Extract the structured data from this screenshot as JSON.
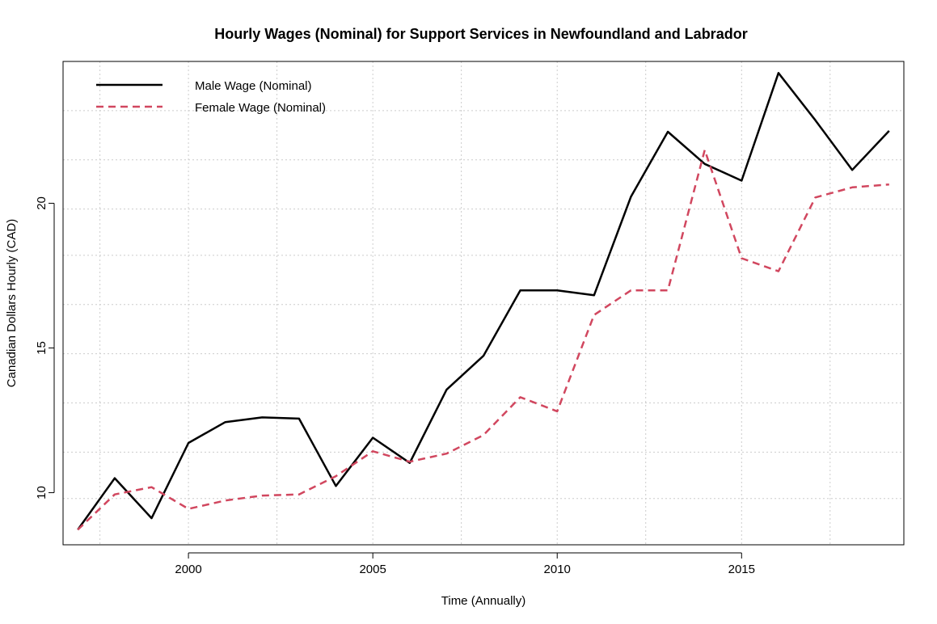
{
  "chart_data": {
    "type": "line",
    "title": "Hourly Wages (Nominal) for Support Services in Newfoundland and Labrador",
    "xlabel": "Time (Annually)",
    "ylabel": "Canadian Dollars Hourly (CAD)",
    "xlim": [
      1996.6,
      2019.4
    ],
    "ylim": [
      8.2,
      24.9
    ],
    "x_ticks": [
      2000,
      2005,
      2010,
      2015
    ],
    "y_ticks": [
      10,
      15,
      20
    ],
    "x_grid": [
      1997.6,
      2000,
      2002.4,
      2005,
      2007.4,
      2010,
      2012.4,
      2015,
      2017.4
    ],
    "y_grid": [
      9.8,
      11.4,
      13.1,
      14.8,
      16.5,
      18.2,
      19.8,
      21.5,
      23.2
    ],
    "grid": true,
    "legend_position": "top-left",
    "x": [
      1997,
      1998,
      1999,
      2000,
      2001,
      2002,
      2003,
      2004,
      2005,
      2006,
      2007,
      2008,
      2009,
      2010,
      2011,
      2012,
      2013,
      2014,
      2015,
      2016,
      2017,
      2018,
      2019
    ],
    "series": [
      {
        "name": "Male Wage (Nominal)",
        "color": "#000000",
        "style": "solid",
        "values": [
          8.72,
          10.5,
          9.12,
          11.72,
          12.44,
          12.6,
          12.56,
          10.23,
          11.9,
          11.03,
          13.56,
          14.73,
          16.99,
          16.99,
          16.82,
          20.23,
          22.47,
          21.36,
          20.78,
          24.5,
          22.87,
          21.15,
          22.5
        ]
      },
      {
        "name": "Female Wage (Nominal)",
        "color": "#d1475f",
        "style": "dashed",
        "values": [
          8.72,
          9.94,
          10.19,
          9.44,
          9.73,
          9.9,
          9.94,
          10.57,
          11.43,
          11.07,
          11.35,
          11.99,
          13.3,
          12.81,
          16.14,
          16.99,
          16.99,
          21.84,
          18.1,
          17.65,
          20.2,
          20.55,
          20.65
        ]
      }
    ]
  }
}
